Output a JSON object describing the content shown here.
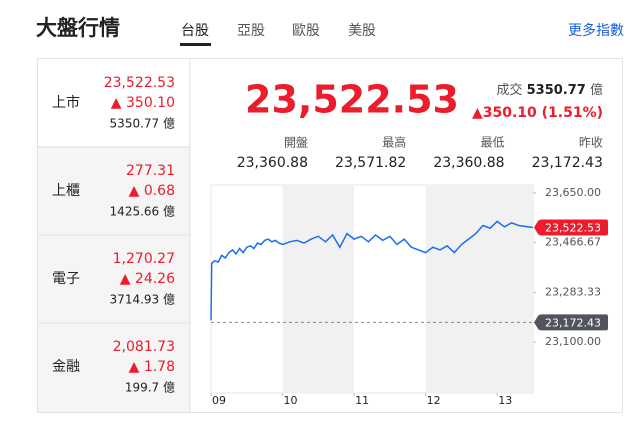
{
  "header": {
    "title": "大盤行情",
    "tabs": [
      "台股",
      "亞股",
      "歐股",
      "美股"
    ],
    "more": "更多指數"
  },
  "sidebar": [
    {
      "name": "上市",
      "price": "23,522.53",
      "change": "▲ 350.10",
      "volume": "5350.77 億"
    },
    {
      "name": "上櫃",
      "price": "277.31",
      "change": "▲ 0.68",
      "volume": "1425.66 億"
    },
    {
      "name": "電子",
      "price": "1,270.27",
      "change": "▲ 24.26",
      "volume": "3714.93 億"
    },
    {
      "name": "金融",
      "price": "2,081.73",
      "change": "▲ 1.78",
      "volume": "199.7 億"
    }
  ],
  "summary": {
    "price": "23,522.53",
    "volume_label": "成交",
    "volume": "5350.77",
    "volume_unit": "億",
    "change": "▲350.10 (1.51%)",
    "stats": [
      {
        "label": "開盤",
        "value": "23,360.88"
      },
      {
        "label": "最高",
        "value": "23,571.82"
      },
      {
        "label": "最低",
        "value": "23,360.88"
      },
      {
        "label": "昨收",
        "value": "23,172.43"
      }
    ]
  },
  "chart_data": {
    "type": "line",
    "color": "#1a6ef0",
    "x": [
      9.0,
      9.01,
      9.05,
      9.1,
      9.15,
      9.2,
      9.25,
      9.3,
      9.35,
      9.4,
      9.45,
      9.5,
      9.55,
      9.6,
      9.65,
      9.7,
      9.75,
      9.8,
      9.85,
      9.9,
      9.95,
      10.0,
      10.1,
      10.2,
      10.3,
      10.4,
      10.5,
      10.6,
      10.7,
      10.8,
      10.9,
      11.0,
      11.1,
      11.2,
      11.3,
      11.4,
      11.5,
      11.6,
      11.7,
      11.8,
      11.9,
      12.0,
      12.1,
      12.2,
      12.3,
      12.4,
      12.5,
      12.6,
      12.7,
      12.8,
      12.9,
      13.0,
      13.1,
      13.2,
      13.3,
      13.5
    ],
    "values": [
      23180,
      23390,
      23400,
      23395,
      23420,
      23410,
      23430,
      23440,
      23425,
      23445,
      23430,
      23450,
      23455,
      23445,
      23465,
      23460,
      23475,
      23480,
      23470,
      23475,
      23465,
      23460,
      23470,
      23475,
      23465,
      23480,
      23490,
      23470,
      23495,
      23450,
      23500,
      23480,
      23490,
      23470,
      23495,
      23475,
      23490,
      23460,
      23480,
      23450,
      23440,
      23430,
      23450,
      23440,
      23455,
      23430,
      23460,
      23480,
      23500,
      23530,
      23520,
      23545,
      23525,
      23540,
      23530,
      23522.53
    ],
    "xlim": [
      9,
      13.5
    ],
    "xticks": [
      {
        "value": 9,
        "label": "09"
      },
      {
        "value": 10,
        "label": "10"
      },
      {
        "value": 11,
        "label": "11"
      },
      {
        "value": 12,
        "label": "12"
      },
      {
        "value": 13,
        "label": "13"
      }
    ],
    "ylim": [
      23100,
      23650
    ],
    "yticks": [
      {
        "value": 23650,
        "label": "23,650.00"
      },
      {
        "value": 23466.67,
        "label": "23,466.67"
      },
      {
        "value": 23283.33,
        "label": "23,283.33"
      },
      {
        "value": 23100,
        "label": "23,100.00"
      }
    ],
    "last": {
      "value": 23522.53,
      "label": "23,522.53"
    },
    "reference": {
      "value": 23172.43,
      "label": "23,172.43"
    }
  }
}
